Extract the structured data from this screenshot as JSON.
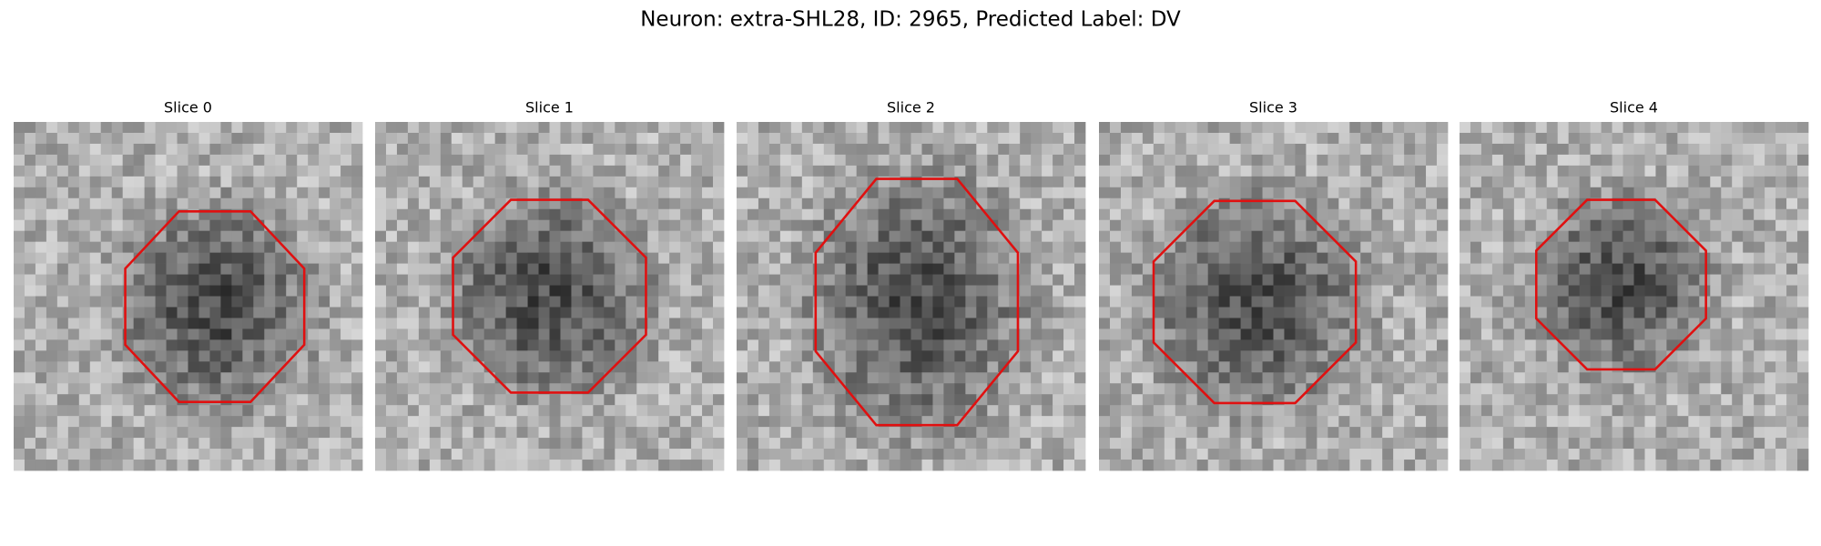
{
  "figure": {
    "title": "Neuron: extra-SHL28, ID: 2965, Predicted Label: DV",
    "panels": [
      {
        "title": "Slice 0"
      },
      {
        "title": "Slice 1"
      },
      {
        "title": "Slice 2"
      },
      {
        "title": "Slice 3"
      },
      {
        "title": "Slice 4"
      }
    ]
  }
}
